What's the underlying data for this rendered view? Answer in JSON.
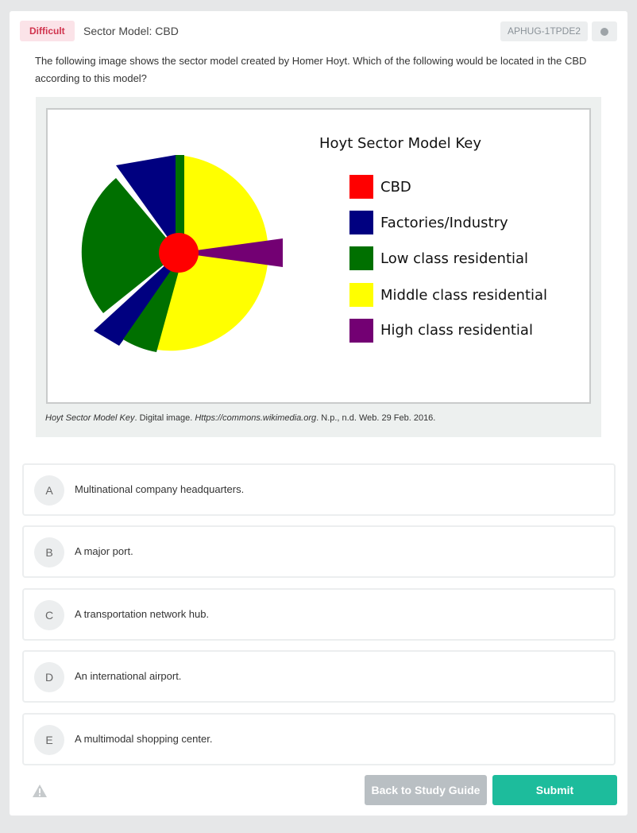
{
  "question": {
    "difficulty": "Difficult",
    "title": "Sector Model: CBD",
    "id": "APHUG-1TPDE2",
    "prompt": "The following image shows the sector model created by Homer Hoyt. Which of the following would be located in the CBD according to this model?"
  },
  "figure": {
    "key_title": "Hoyt Sector Model Key",
    "legend": [
      {
        "label": "CBD",
        "color": "#ff0000"
      },
      {
        "label": "Factories/Industry",
        "color": "#000080"
      },
      {
        "label": "Low class residential",
        "color": "#007000"
      },
      {
        "label": "Middle class residential",
        "color": "#ffff00"
      },
      {
        "label": "High class residential",
        "color": "#800080"
      }
    ],
    "caption": {
      "title": "Hoyt Sector Model Key",
      "text1": ". Digital image. ",
      "site": "Https://commons.wikimedia.org",
      "text2": ". N.p., n.d. Web. 29 Feb. 2016."
    }
  },
  "choices": [
    {
      "letter": "A",
      "text": "Multinational company headquarters."
    },
    {
      "letter": "B",
      "text": "A major port."
    },
    {
      "letter": "C",
      "text": "A transportation network hub."
    },
    {
      "letter": "D",
      "text": "An international airport."
    },
    {
      "letter": "E",
      "text": "A multimodal shopping center."
    }
  ],
  "footer": {
    "back_label": "Back to Study Guide",
    "submit_label": "Submit",
    "warning_icon": "warning-icon"
  }
}
